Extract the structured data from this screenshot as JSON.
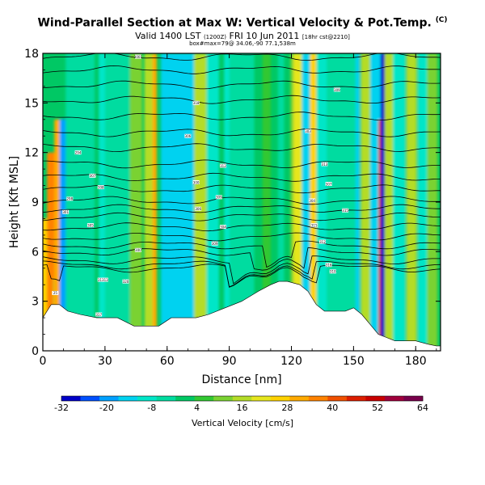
{
  "header": {
    "title": "Wind-Parallel Section at Max W: Vertical Velocity & Pot.Temp.",
    "title_mark": "(C)",
    "valid_main": "Valid 1400 LST",
    "valid_sub1": "(1200Z)",
    "valid_main2": "FRI 10 Jun 2011",
    "valid_sub2": "[18hr cst@2210]",
    "subtitle2": "box#max=79@ 34.06,-90 77.1,538m"
  },
  "chart_data": {
    "type": "heatmap",
    "title": "Wind-Parallel Section at Max W: Vertical Velocity & Pot.Temp.",
    "xlabel": "Distance [nm]",
    "ylabel": "Height [Kft MSL]",
    "xlim": [
      0,
      192
    ],
    "ylim": [
      0,
      18
    ],
    "x_ticks": [
      0,
      30,
      60,
      90,
      120,
      150,
      180
    ],
    "y_ticks": [
      0,
      3,
      6,
      9,
      12,
      15,
      18
    ],
    "colorbar": {
      "label": "Vertical Velocity [cm/s]",
      "ticks": [
        -32,
        -20,
        -8,
        4,
        16,
        28,
        40,
        52,
        64
      ],
      "colors": [
        "#0000c8",
        "#0050ff",
        "#00a0ff",
        "#00d2f0",
        "#00e6c8",
        "#00dca0",
        "#00c864",
        "#32c832",
        "#7ad232",
        "#b4dc28",
        "#e6e61e",
        "#ffd200",
        "#ffaa00",
        "#ff8200",
        "#f05000",
        "#dc1e00",
        "#c80000",
        "#a0003c",
        "#78004b"
      ]
    },
    "terrain": [
      [
        0,
        2
      ],
      [
        4,
        2.8
      ],
      [
        8,
        2.8
      ],
      [
        12,
        2.4
      ],
      [
        18,
        2.2
      ],
      [
        26,
        2
      ],
      [
        36,
        2
      ],
      [
        44,
        1.5
      ],
      [
        50,
        1.5
      ],
      [
        56,
        1.5
      ],
      [
        62,
        2
      ],
      [
        68,
        2
      ],
      [
        74,
        2
      ],
      [
        80,
        2.2
      ],
      [
        88,
        2.6
      ],
      [
        96,
        3
      ],
      [
        104,
        3.6
      ],
      [
        110,
        4
      ],
      [
        114,
        4.2
      ],
      [
        118,
        4.2
      ],
      [
        124,
        4
      ],
      [
        128,
        3.6
      ],
      [
        132,
        2.8
      ],
      [
        136,
        2.4
      ],
      [
        140,
        2.4
      ],
      [
        146,
        2.4
      ],
      [
        150,
        2.6
      ],
      [
        154,
        2.2
      ],
      [
        158,
        1.6
      ],
      [
        162,
        1
      ],
      [
        166,
        0.8
      ],
      [
        170,
        0.6
      ],
      [
        176,
        0.6
      ],
      [
        180,
        0.6
      ],
      [
        186,
        0.4
      ],
      [
        190,
        0.3
      ],
      [
        192,
        0.3
      ]
    ],
    "series": [
      {
        "name": "w",
        "values": [
          [
            2,
            8,
            7,
            28
          ],
          [
            6,
            12,
            8,
            36
          ],
          [
            8,
            14,
            5,
            32
          ],
          [
            5,
            4.4,
            0,
            16
          ],
          [
            11,
            14,
            6,
            -24
          ],
          [
            12,
            14,
            8,
            -20
          ],
          [
            22,
            16,
            6,
            -12
          ],
          [
            30,
            24,
            6,
            -10
          ],
          [
            45,
            22,
            6,
            12
          ],
          [
            52,
            24,
            6,
            14
          ],
          [
            54,
            20,
            2,
            30
          ],
          [
            60,
            22,
            6,
            -12
          ],
          [
            63,
            22,
            10,
            -16
          ],
          [
            70,
            24,
            10,
            -12
          ],
          [
            76,
            24,
            6,
            14
          ],
          [
            82,
            22,
            6,
            -8
          ],
          [
            90,
            24,
            5,
            -10
          ],
          [
            94,
            26,
            5,
            12
          ],
          [
            100,
            24,
            4,
            -6
          ],
          [
            108,
            28,
            4,
            8
          ],
          [
            115,
            28,
            3,
            -6
          ],
          [
            122,
            28,
            5,
            10
          ],
          [
            126,
            30,
            10,
            20
          ],
          [
            128,
            30,
            6,
            -12
          ],
          [
            131,
            30,
            4,
            28
          ],
          [
            136,
            28,
            8,
            -10
          ],
          [
            140,
            30,
            5,
            14
          ],
          [
            150,
            26,
            6,
            -14
          ],
          [
            156,
            26,
            5,
            14
          ],
          [
            162,
            24,
            8,
            -12
          ],
          [
            165,
            14,
            3,
            60
          ],
          [
            165,
            14,
            6,
            40
          ],
          [
            166,
            20,
            6,
            -32
          ],
          [
            168,
            24,
            6,
            18
          ],
          [
            172,
            26,
            6,
            -10
          ],
          [
            178,
            26,
            5,
            14
          ],
          [
            184,
            24,
            6,
            -8
          ],
          [
            188,
            22,
            5,
            10
          ],
          [
            18,
            28,
            14,
            -6
          ],
          [
            96,
            32,
            12,
            -4
          ],
          [
            36,
            28,
            12,
            -6
          ],
          [
            144,
            28,
            14,
            -6
          ]
        ]
      },
      {
        "name": "theta",
        "values": [
          [
            11,
            2,
            5.0
          ],
          [
            12,
            3,
            5.2
          ],
          [
            13,
            4,
            5.5
          ],
          [
            14,
            5,
            6.0
          ],
          [
            14,
            5.5,
            6.4
          ],
          [
            15,
            6,
            6.9
          ],
          [
            16,
            6.5,
            7.5
          ],
          [
            17,
            7,
            8.1
          ],
          [
            17,
            7.5,
            8.6
          ],
          [
            18,
            8,
            9.1
          ],
          [
            19,
            8.5,
            9.8
          ],
          [
            20,
            9,
            10.5
          ],
          [
            21,
            9.5,
            11.3
          ],
          [
            22,
            10,
            12.3
          ],
          [
            23,
            10.5,
            13.2
          ],
          [
            24,
            11,
            14.2
          ],
          [
            25,
            11.5,
            15.2
          ],
          [
            26,
            12,
            16.1
          ],
          [
            27,
            12.5,
            17.0
          ],
          [
            28,
            13,
            17.8
          ]
        ]
      }
    ],
    "theta_labels": [
      "25",
      "301",
      "298",
      "294",
      "305",
      "307",
      "308",
      "318",
      "3001",
      "300",
      "306",
      "318",
      "300",
      "306",
      "309",
      "309",
      "304",
      "312",
      "303",
      "304",
      "315",
      "312",
      "313",
      "307",
      "316",
      "315",
      "309",
      "317",
      "313",
      "320",
      "310",
      "310",
      "330",
      "332",
      "306",
      "308",
      "320",
      "300",
      "306",
      "312",
      "316",
      "311"
    ]
  },
  "colors": {
    "background": "#ffffff",
    "terrain": "#ffffff",
    "contour": "#000000"
  }
}
